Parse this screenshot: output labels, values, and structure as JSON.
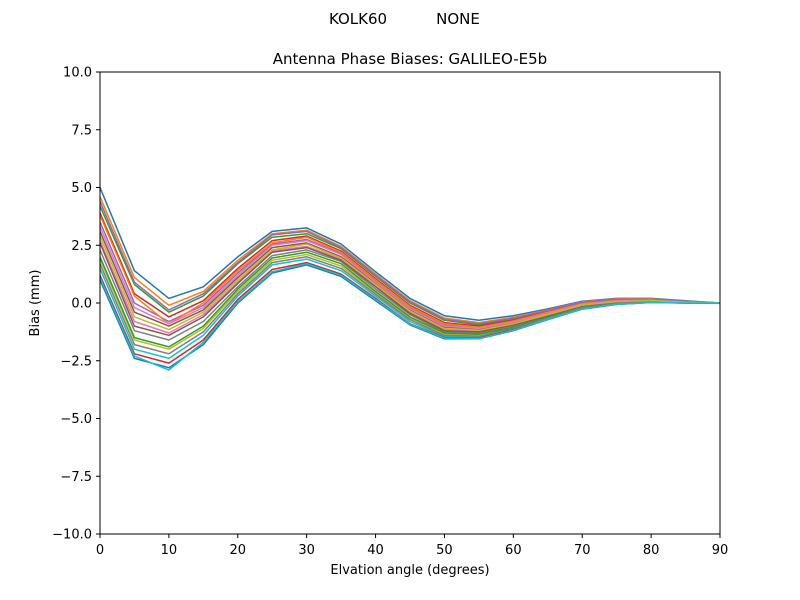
{
  "figure": {
    "suptitle_left": "KOLK60",
    "suptitle_right": "NONE"
  },
  "chart_data": {
    "type": "line",
    "title": "Antenna Phase Biases: GALILEO-E5b",
    "xlabel": "Elvation angle (degrees)",
    "ylabel": "Bias (mm)",
    "xlim": [
      0,
      90
    ],
    "ylim": [
      -10,
      10
    ],
    "grid": false,
    "legend": "none",
    "x_ticks": [
      0,
      10,
      20,
      30,
      40,
      50,
      60,
      70,
      80,
      90
    ],
    "y_ticks": [
      -10.0,
      -7.5,
      -5.0,
      -2.5,
      0.0,
      2.5,
      5.0,
      7.5,
      10.0
    ],
    "y_tick_labels": [
      "−10.0",
      "−7.5",
      "−5.0",
      "−2.5",
      "0.0",
      "2.5",
      "5.0",
      "7.5",
      "10.0"
    ],
    "x": [
      0,
      5,
      10,
      15,
      20,
      25,
      30,
      35,
      40,
      45,
      50,
      55,
      60,
      65,
      70,
      75,
      80,
      85,
      90
    ],
    "series_colors": [
      "#1f77b4",
      "#ff7f0e",
      "#2ca02c",
      "#d62728",
      "#9467bd",
      "#8c564b",
      "#e377c2",
      "#7f7f7f",
      "#bcbd22",
      "#17becf"
    ],
    "series": [
      {
        "values": [
          5.0,
          1.4,
          0.2,
          0.7,
          2.0,
          3.1,
          3.25,
          2.55,
          1.35,
          0.2,
          -0.55,
          -0.75,
          -0.55,
          -0.25,
          0.08,
          0.2,
          0.2,
          0.1,
          0.0
        ]
      },
      {
        "values": [
          4.6,
          1.1,
          -0.1,
          0.5,
          1.85,
          3.0,
          3.15,
          2.45,
          1.25,
          0.1,
          -0.65,
          -0.85,
          -0.62,
          -0.3,
          0.05,
          0.18,
          0.18,
          0.08,
          0.0
        ]
      },
      {
        "values": [
          4.2,
          0.8,
          -0.4,
          0.3,
          1.7,
          2.85,
          3.0,
          2.35,
          1.15,
          0.0,
          -0.75,
          -0.95,
          -0.7,
          -0.35,
          0.02,
          0.15,
          0.16,
          0.07,
          0.0
        ]
      },
      {
        "values": [
          3.9,
          0.4,
          -0.6,
          0.1,
          1.5,
          2.7,
          2.9,
          2.25,
          1.05,
          -0.1,
          -0.85,
          -1.0,
          -0.75,
          -0.38,
          0.0,
          0.13,
          0.15,
          0.06,
          0.0
        ]
      },
      {
        "values": [
          3.5,
          0.0,
          -0.8,
          -0.1,
          1.3,
          2.55,
          2.75,
          2.15,
          0.95,
          -0.2,
          -0.95,
          -1.05,
          -0.8,
          -0.42,
          -0.03,
          0.1,
          0.13,
          0.05,
          0.0
        ]
      },
      {
        "values": [
          3.1,
          -0.4,
          -1.0,
          -0.3,
          1.1,
          2.4,
          2.6,
          2.0,
          0.85,
          -0.3,
          -1.05,
          -1.15,
          -0.87,
          -0.47,
          -0.07,
          0.08,
          0.12,
          0.04,
          0.0
        ]
      },
      {
        "values": [
          2.7,
          -0.8,
          -1.3,
          -0.5,
          0.9,
          2.25,
          2.45,
          1.9,
          0.75,
          -0.4,
          -1.15,
          -1.22,
          -0.93,
          -0.52,
          -0.1,
          0.05,
          0.1,
          0.03,
          0.0
        ]
      },
      {
        "values": [
          2.3,
          -1.2,
          -1.6,
          -0.8,
          0.7,
          2.05,
          2.3,
          1.8,
          0.6,
          -0.5,
          -1.25,
          -1.3,
          -1.0,
          -0.57,
          -0.14,
          0.03,
          0.08,
          0.02,
          0.0
        ]
      },
      {
        "values": [
          1.9,
          -1.6,
          -2.0,
          -1.1,
          0.5,
          1.85,
          2.1,
          1.6,
          0.45,
          -0.65,
          -1.35,
          -1.4,
          -1.07,
          -0.62,
          -0.18,
          0.0,
          0.06,
          0.01,
          0.0
        ]
      },
      {
        "values": [
          1.5,
          -2.0,
          -2.4,
          -1.4,
          0.3,
          1.65,
          1.9,
          1.4,
          0.3,
          -0.8,
          -1.45,
          -1.48,
          -1.12,
          -0.67,
          -0.22,
          -0.03,
          0.04,
          0.0,
          0.0
        ]
      },
      {
        "values": [
          1.0,
          -2.4,
          -2.8,
          -1.8,
          0.0,
          1.3,
          1.65,
          1.15,
          0.1,
          -0.95,
          -1.55,
          -1.55,
          -1.2,
          -0.72,
          -0.27,
          -0.06,
          0.02,
          0.0,
          0.0
        ]
      },
      {
        "values": [
          3.8,
          0.3,
          -0.9,
          0.0,
          1.4,
          2.6,
          2.85,
          2.2,
          1.0,
          -0.15,
          -0.9,
          -1.05,
          -0.78,
          -0.4,
          -0.02,
          0.12,
          0.14,
          0.05,
          0.0
        ]
      },
      {
        "values": [
          2.0,
          -1.5,
          -1.9,
          -1.0,
          0.6,
          1.95,
          2.2,
          1.7,
          0.5,
          -0.6,
          -1.3,
          -1.35,
          -1.05,
          -0.6,
          -0.16,
          0.01,
          0.07,
          0.02,
          0.0
        ]
      },
      {
        "values": [
          1.2,
          -2.2,
          -2.6,
          -1.6,
          0.15,
          1.45,
          1.75,
          1.25,
          0.2,
          -0.9,
          -1.5,
          -1.52,
          -1.15,
          -0.7,
          -0.25,
          -0.05,
          0.03,
          0.0,
          0.0
        ]
      },
      {
        "values": [
          4.4,
          0.9,
          -0.3,
          0.4,
          1.75,
          2.95,
          3.1,
          2.4,
          1.2,
          0.05,
          -0.7,
          -0.9,
          -0.66,
          -0.32,
          0.04,
          0.17,
          0.17,
          0.08,
          0.0
        ]
      },
      {
        "values": [
          2.6,
          -1.0,
          -1.4,
          -0.6,
          0.85,
          2.2,
          2.4,
          1.85,
          0.7,
          -0.45,
          -1.2,
          -1.25,
          -0.95,
          -0.55,
          -0.12,
          0.04,
          0.09,
          0.03,
          0.0
        ]
      },
      {
        "values": [
          3.3,
          -0.2,
          -0.9,
          -0.2,
          1.2,
          2.5,
          2.7,
          2.1,
          0.9,
          -0.25,
          -1.0,
          -1.1,
          -0.83,
          -0.45,
          -0.05,
          0.09,
          0.12,
          0.04,
          0.0
        ]
      },
      {
        "values": [
          1.7,
          -1.8,
          -2.2,
          -1.25,
          0.4,
          1.75,
          2.0,
          1.5,
          0.38,
          -0.72,
          -1.4,
          -1.44,
          -1.1,
          -0.65,
          -0.2,
          -0.01,
          0.05,
          0.01,
          0.0
        ]
      },
      {
        "values": [
          2.9,
          -0.6,
          -1.15,
          -0.4,
          1.0,
          2.3,
          2.55,
          1.95,
          0.8,
          -0.35,
          -1.1,
          -1.18,
          -0.9,
          -0.5,
          -0.09,
          0.06,
          0.11,
          0.03,
          0.0
        ]
      },
      {
        "values": [
          1.1,
          -2.3,
          -2.9,
          -1.7,
          0.05,
          1.35,
          1.7,
          1.2,
          0.15,
          -0.92,
          -1.52,
          -1.54,
          -1.18,
          -0.71,
          -0.26,
          -0.06,
          0.02,
          0.0,
          0.0
        ]
      }
    ]
  }
}
